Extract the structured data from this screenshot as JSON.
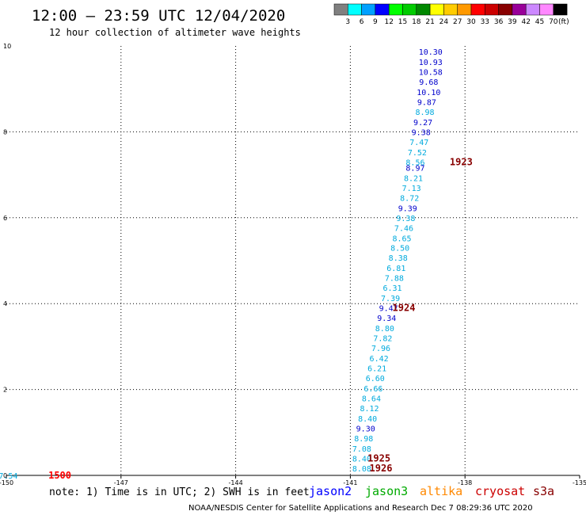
{
  "chart_data": {
    "type": "scatter",
    "title": "12:00 – 23:59 UTC 12/04/2020",
    "subtitle": "12 hour collection of altimeter wave heights",
    "xlim": [
      -150,
      -135
    ],
    "ylim": [
      0,
      10
    ],
    "x_ticks": [
      "-150",
      "-147",
      "-144",
      "-141",
      "-138",
      "-135"
    ],
    "y_ticks": [
      "0",
      "2",
      "4",
      "6",
      "8",
      "10"
    ],
    "grid": true,
    "colorbar": {
      "unit": "(ft)",
      "labels": [
        "3",
        "6",
        "9",
        "12",
        "15",
        "18",
        "21",
        "24",
        "27",
        "30",
        "33",
        "36",
        "39",
        "42",
        "45",
        "70"
      ],
      "colors": [
        "#808080",
        "#00ffff",
        "#00a0ff",
        "#0000ff",
        "#00ff00",
        "#00cc00",
        "#008800",
        "#ffff00",
        "#ffcc00",
        "#ff9900",
        "#ff0000",
        "#cc0000",
        "#880000",
        "#990099",
        "#cc88ff",
        "#ff88ff",
        "#000000"
      ]
    },
    "points": [
      {
        "x": -138.9,
        "y": 9.87,
        "label": "10.30",
        "color": "#0000cc"
      },
      {
        "x": -138.9,
        "y": 9.63,
        "label": "10.93",
        "color": "#0000cc"
      },
      {
        "x": -138.9,
        "y": 9.4,
        "label": "10.58",
        "color": "#0000cc"
      },
      {
        "x": -138.95,
        "y": 9.17,
        "label": "9.68",
        "color": "#0000cc"
      },
      {
        "x": -138.95,
        "y": 8.93,
        "label": "10.10",
        "color": "#0000cc"
      },
      {
        "x": -139.0,
        "y": 8.7,
        "label": "9.87",
        "color": "#0000cc"
      },
      {
        "x": -139.05,
        "y": 8.47,
        "label": "8.98",
        "color": "#00aadd"
      },
      {
        "x": -139.1,
        "y": 8.23,
        "label": "9.27",
        "color": "#0000cc"
      },
      {
        "x": -139.15,
        "y": 8.0,
        "label": "9.38",
        "color": "#0000cc"
      },
      {
        "x": -139.2,
        "y": 7.77,
        "label": "7.47",
        "color": "#00aadd"
      },
      {
        "x": -139.25,
        "y": 7.53,
        "label": "7.52",
        "color": "#00aadd"
      },
      {
        "x": -139.3,
        "y": 7.3,
        "label": "8.56",
        "color": "#00aadd"
      },
      {
        "x": -139.3,
        "y": 7.17,
        "label": "8.97",
        "color": "#0000cc"
      },
      {
        "x": -139.35,
        "y": 6.93,
        "label": "8.21",
        "color": "#00aadd"
      },
      {
        "x": -139.4,
        "y": 6.7,
        "label": "7.13",
        "color": "#00aadd"
      },
      {
        "x": -139.45,
        "y": 6.47,
        "label": "8.72",
        "color": "#00aadd"
      },
      {
        "x": -139.5,
        "y": 6.23,
        "label": "9.39",
        "color": "#0000cc"
      },
      {
        "x": -139.55,
        "y": 6.0,
        "label": "9.38",
        "color": "#00aadd"
      },
      {
        "x": -139.6,
        "y": 5.77,
        "label": "7.46",
        "color": "#00aadd"
      },
      {
        "x": -139.65,
        "y": 5.53,
        "label": "8.65",
        "color": "#00aadd"
      },
      {
        "x": -139.7,
        "y": 5.3,
        "label": "8.50",
        "color": "#00aadd"
      },
      {
        "x": -139.75,
        "y": 5.07,
        "label": "8.38",
        "color": "#00aadd"
      },
      {
        "x": -139.8,
        "y": 4.83,
        "label": "6.81",
        "color": "#00aadd"
      },
      {
        "x": -139.85,
        "y": 4.6,
        "label": "7.88",
        "color": "#00aadd"
      },
      {
        "x": -139.9,
        "y": 4.37,
        "label": "6.31",
        "color": "#00aadd"
      },
      {
        "x": -139.95,
        "y": 4.13,
        "label": "7.39",
        "color": "#00aadd"
      },
      {
        "x": -140.0,
        "y": 3.9,
        "label": "9.47",
        "color": "#0000cc"
      },
      {
        "x": -140.05,
        "y": 3.67,
        "label": "9.34",
        "color": "#0000cc"
      },
      {
        "x": -140.1,
        "y": 3.43,
        "label": "8.80",
        "color": "#00aadd"
      },
      {
        "x": -140.15,
        "y": 3.2,
        "label": "7.82",
        "color": "#00aadd"
      },
      {
        "x": -140.2,
        "y": 2.97,
        "label": "7.96",
        "color": "#00aadd"
      },
      {
        "x": -140.25,
        "y": 2.73,
        "label": "6.42",
        "color": "#00aadd"
      },
      {
        "x": -140.3,
        "y": 2.5,
        "label": "6.21",
        "color": "#00aadd"
      },
      {
        "x": -140.35,
        "y": 2.27,
        "label": "6.60",
        "color": "#00aadd"
      },
      {
        "x": -140.4,
        "y": 2.03,
        "label": "6.66",
        "color": "#00aadd"
      },
      {
        "x": -140.45,
        "y": 1.8,
        "label": "8.64",
        "color": "#00aadd"
      },
      {
        "x": -140.5,
        "y": 1.57,
        "label": "8.12",
        "color": "#00aadd"
      },
      {
        "x": -140.55,
        "y": 1.33,
        "label": "8.40",
        "color": "#00aadd"
      },
      {
        "x": -140.6,
        "y": 1.1,
        "label": "9.30",
        "color": "#0000cc"
      },
      {
        "x": -140.65,
        "y": 0.87,
        "label": "8.98",
        "color": "#00aadd"
      },
      {
        "x": -140.7,
        "y": 0.63,
        "label": "7.08",
        "color": "#00aadd"
      },
      {
        "x": -140.7,
        "y": 0.4,
        "label": "8.40",
        "color": "#00aadd"
      },
      {
        "x": -140.7,
        "y": 0.17,
        "label": "8.08",
        "color": "#00aadd"
      },
      {
        "x": -149.95,
        "y": 0.0,
        "label": "7.54",
        "color": "#00aadd"
      }
    ],
    "pass_labels": [
      {
        "x": -138.1,
        "y": 7.3,
        "label": "1923",
        "color": "#880000"
      },
      {
        "x": -139.6,
        "y": 3.9,
        "label": "1924",
        "color": "#880000"
      },
      {
        "x": -140.25,
        "y": 0.4,
        "label": "1925",
        "color": "#880000"
      },
      {
        "x": -140.2,
        "y": 0.17,
        "label": "1926",
        "color": "#880000"
      },
      {
        "x": -148.6,
        "y": 0.0,
        "label": "1500",
        "color": "#ff0000"
      }
    ]
  },
  "note": "note: 1) Time is in UTC; 2) SWH is in feet",
  "missions": [
    {
      "name": "jason2",
      "color": "#0000ff"
    },
    {
      "name": "jason3",
      "color": "#00aa00"
    },
    {
      "name": "altika",
      "color": "#ff8800"
    },
    {
      "name": "cryosat",
      "color": "#cc0000"
    },
    {
      "name": "s3a",
      "color": "#880000"
    }
  ],
  "footer": "NOAA/NESDIS Center for Satellite Applications and Research   Dec  7 08:29:36 UTC 2020"
}
